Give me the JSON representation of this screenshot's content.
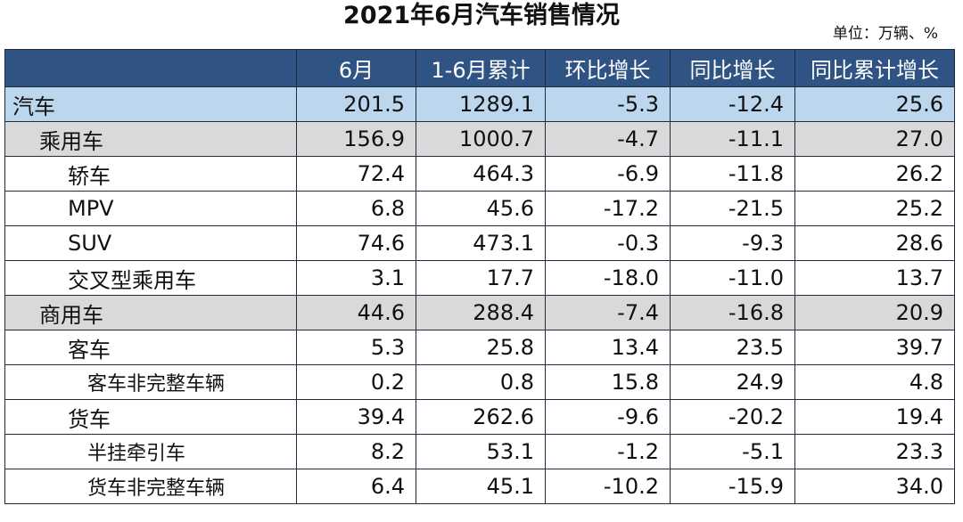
{
  "title": "2021年6月汽车销售情况",
  "unit": "单位：万辆、%",
  "chart_data": {
    "type": "table",
    "columns": [
      "",
      "6月",
      "1-6月累计",
      "环比增长",
      "同比增长",
      "同比累计增长"
    ],
    "rows": [
      {
        "level": 0,
        "name": "汽车",
        "values": [
          "201.5",
          "1289.1",
          "-5.3",
          "-12.4",
          "25.6"
        ]
      },
      {
        "level": 1,
        "name": "乘用车",
        "values": [
          "156.9",
          "1000.7",
          "-4.7",
          "-11.1",
          "27.0"
        ]
      },
      {
        "level": 2,
        "name": "轿车",
        "values": [
          "72.4",
          "464.3",
          "-6.9",
          "-11.8",
          "26.2"
        ]
      },
      {
        "level": 2,
        "name": "MPV",
        "values": [
          "6.8",
          "45.6",
          "-17.2",
          "-21.5",
          "25.2"
        ]
      },
      {
        "level": 2,
        "name": "SUV",
        "values": [
          "74.6",
          "473.1",
          "-0.3",
          "-9.3",
          "28.6"
        ]
      },
      {
        "level": 2,
        "name": "交叉型乘用车",
        "values": [
          "3.1",
          "17.7",
          "-18.0",
          "-11.0",
          "13.7"
        ]
      },
      {
        "level": 1,
        "name": "商用车",
        "values": [
          "44.6",
          "288.4",
          "-7.4",
          "-16.8",
          "20.9"
        ]
      },
      {
        "level": 2,
        "name": "客车",
        "values": [
          "5.3",
          "25.8",
          "13.4",
          "23.5",
          "39.7"
        ]
      },
      {
        "level": 3,
        "name": "客车非完整车辆",
        "values": [
          "0.2",
          "0.8",
          "15.8",
          "24.9",
          "4.8"
        ]
      },
      {
        "level": 2,
        "name": "货车",
        "values": [
          "39.4",
          "262.6",
          "-9.6",
          "-20.2",
          "19.4"
        ]
      },
      {
        "level": 3,
        "name": "半挂牵引车",
        "values": [
          "8.2",
          "53.1",
          "-1.2",
          "-5.1",
          "23.3"
        ]
      },
      {
        "level": 3,
        "name": "货车非完整车辆",
        "values": [
          "6.4",
          "45.1",
          "-10.2",
          "-15.9",
          "34.0"
        ]
      }
    ]
  }
}
